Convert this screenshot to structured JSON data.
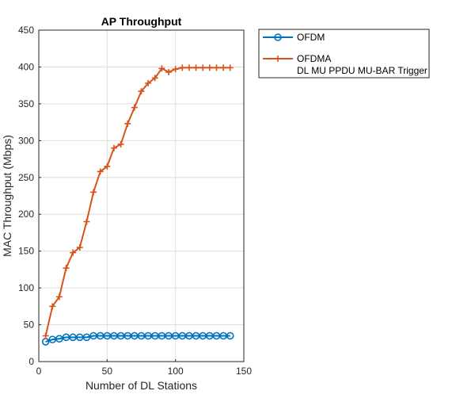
{
  "chart_data": {
    "type": "line",
    "title": "AP Throughput",
    "xlabel": "Number of DL Stations",
    "ylabel": "MAC Throughput (Mbps)",
    "xlim": [
      0,
      150
    ],
    "ylim": [
      0,
      450
    ],
    "xticks": [
      0,
      50,
      100,
      150
    ],
    "yticks": [
      0,
      50,
      100,
      150,
      200,
      250,
      300,
      350,
      400,
      450
    ],
    "grid": true,
    "legend_position": "outside-top-right",
    "x": [
      5,
      10,
      15,
      20,
      25,
      30,
      35,
      40,
      45,
      50,
      55,
      60,
      65,
      70,
      75,
      80,
      85,
      90,
      95,
      100,
      105,
      110,
      115,
      120,
      125,
      130,
      135,
      140
    ],
    "series": [
      {
        "name": "OFDM",
        "marker": "circle",
        "color": "#0072BD",
        "values": [
          27,
          30,
          31,
          33,
          33,
          33,
          33,
          35,
          35,
          35,
          35,
          35,
          35,
          35,
          35,
          35,
          35,
          35,
          35,
          35,
          35,
          35,
          35,
          35,
          35,
          35,
          35,
          35
        ]
      },
      {
        "name": "OFDMA",
        "name_line2": "DL MU PPDU MU-BAR Trigger",
        "marker": "plus",
        "color": "#D95319",
        "values": [
          35,
          75,
          88,
          127,
          148,
          155,
          190,
          230,
          258,
          265,
          290,
          295,
          323,
          345,
          367,
          378,
          385,
          398,
          393,
          397,
          399,
          399,
          399,
          399,
          399,
          399,
          399,
          399
        ]
      }
    ]
  }
}
